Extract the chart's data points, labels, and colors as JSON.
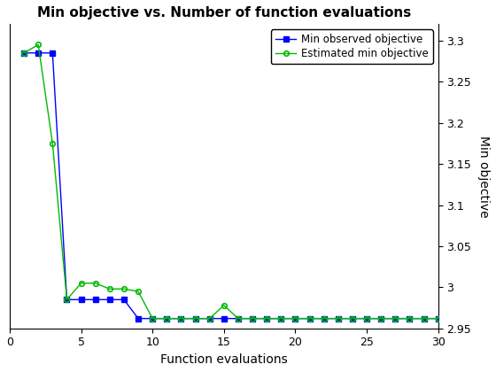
{
  "title": "Min objective vs. Number of function evaluations",
  "xlabel": "Function evaluations",
  "ylabel": "Min objective",
  "xlim": [
    0,
    30
  ],
  "ylim": [
    2.95,
    3.32
  ],
  "yticks": [
    2.95,
    3.0,
    3.05,
    3.1,
    3.15,
    3.2,
    3.25,
    3.3
  ],
  "xticks": [
    0,
    5,
    10,
    15,
    20,
    25,
    30
  ],
  "line1": {
    "label": "Min observed objective",
    "color": "#0000ff",
    "marker": "s",
    "markersize": 4,
    "x": [
      1,
      2,
      3,
      4,
      5,
      6,
      7,
      8,
      9,
      10,
      11,
      12,
      13,
      14,
      15,
      16,
      17,
      18,
      19,
      20,
      21,
      22,
      23,
      24,
      25,
      26,
      27,
      28,
      29,
      30
    ],
    "y": [
      3.285,
      3.285,
      3.285,
      2.985,
      2.985,
      2.985,
      2.985,
      2.985,
      2.962,
      2.962,
      2.962,
      2.962,
      2.962,
      2.962,
      2.962,
      2.962,
      2.962,
      2.962,
      2.962,
      2.962,
      2.962,
      2.962,
      2.962,
      2.962,
      2.962,
      2.962,
      2.962,
      2.962,
      2.962,
      2.962
    ]
  },
  "line2": {
    "label": "Estimated min objective",
    "color": "#00bb00",
    "marker": "o",
    "markersize": 4,
    "x": [
      1,
      2,
      3,
      4,
      5,
      6,
      7,
      8,
      9,
      10,
      11,
      12,
      13,
      14,
      15,
      16,
      17,
      18,
      19,
      20,
      21,
      22,
      23,
      24,
      25,
      26,
      27,
      28,
      29,
      30
    ],
    "y": [
      3.285,
      3.295,
      3.175,
      2.985,
      3.005,
      3.005,
      2.998,
      2.998,
      2.995,
      2.962,
      2.962,
      2.962,
      2.962,
      2.962,
      2.978,
      2.962,
      2.962,
      2.962,
      2.962,
      2.962,
      2.962,
      2.962,
      2.962,
      2.962,
      2.962,
      2.962,
      2.962,
      2.962,
      2.962,
      2.962
    ]
  },
  "legend_loc": "upper right",
  "bg_color": "#ffffff",
  "title_fontsize": 11,
  "label_fontsize": 10,
  "tick_fontsize": 9
}
